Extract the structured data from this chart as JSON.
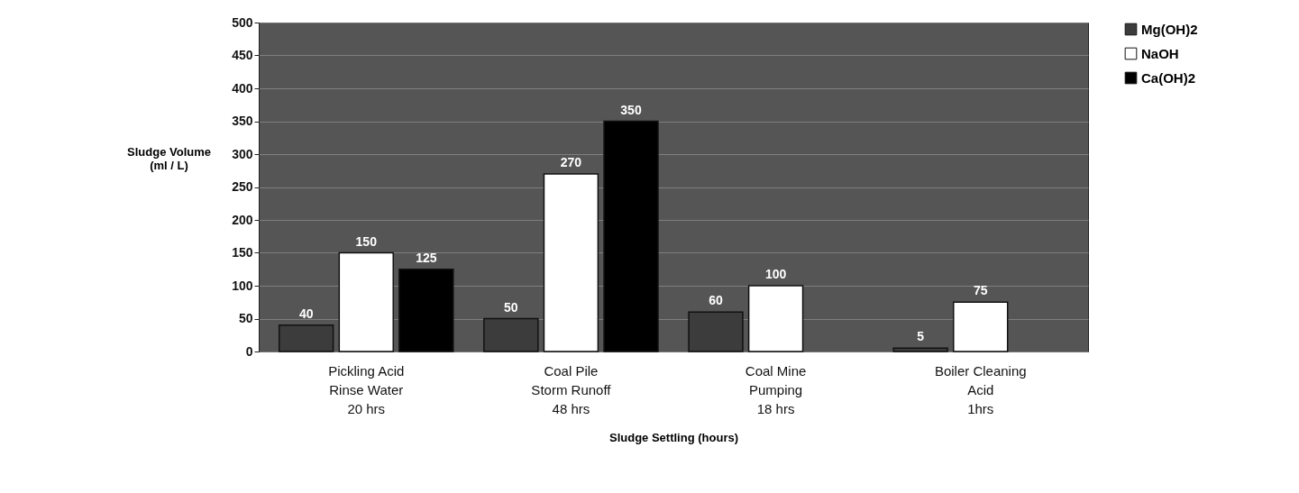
{
  "chart_data": {
    "type": "bar",
    "categories": [
      "Pickling Acid\nRinse Water\n20 hrs",
      "Coal Pile\nStorm Runoff\n48 hrs",
      "Coal Mine\nPumping\n18 hrs",
      "Boiler Cleaning\nAcid\n1hrs"
    ],
    "series": [
      {
        "name": "Mg(OH)2",
        "color": "#3c3c3c",
        "values": [
          40,
          50,
          60,
          5
        ]
      },
      {
        "name": "NaOH",
        "color": "#ffffff",
        "values": [
          150,
          270,
          100,
          75
        ]
      },
      {
        "name": "Ca(OH)2",
        "color": "#000000",
        "values": [
          125,
          350,
          null,
          null
        ]
      }
    ],
    "xlabel": "Sludge Settling (hours)",
    "ylabel": "Sludge Volume\n(ml / L)",
    "ylim": [
      0,
      500
    ],
    "yticks": [
      0,
      50,
      100,
      150,
      200,
      250,
      300,
      350,
      400,
      450,
      500
    ],
    "grid": "y",
    "legend": "right",
    "data_labels": true
  }
}
